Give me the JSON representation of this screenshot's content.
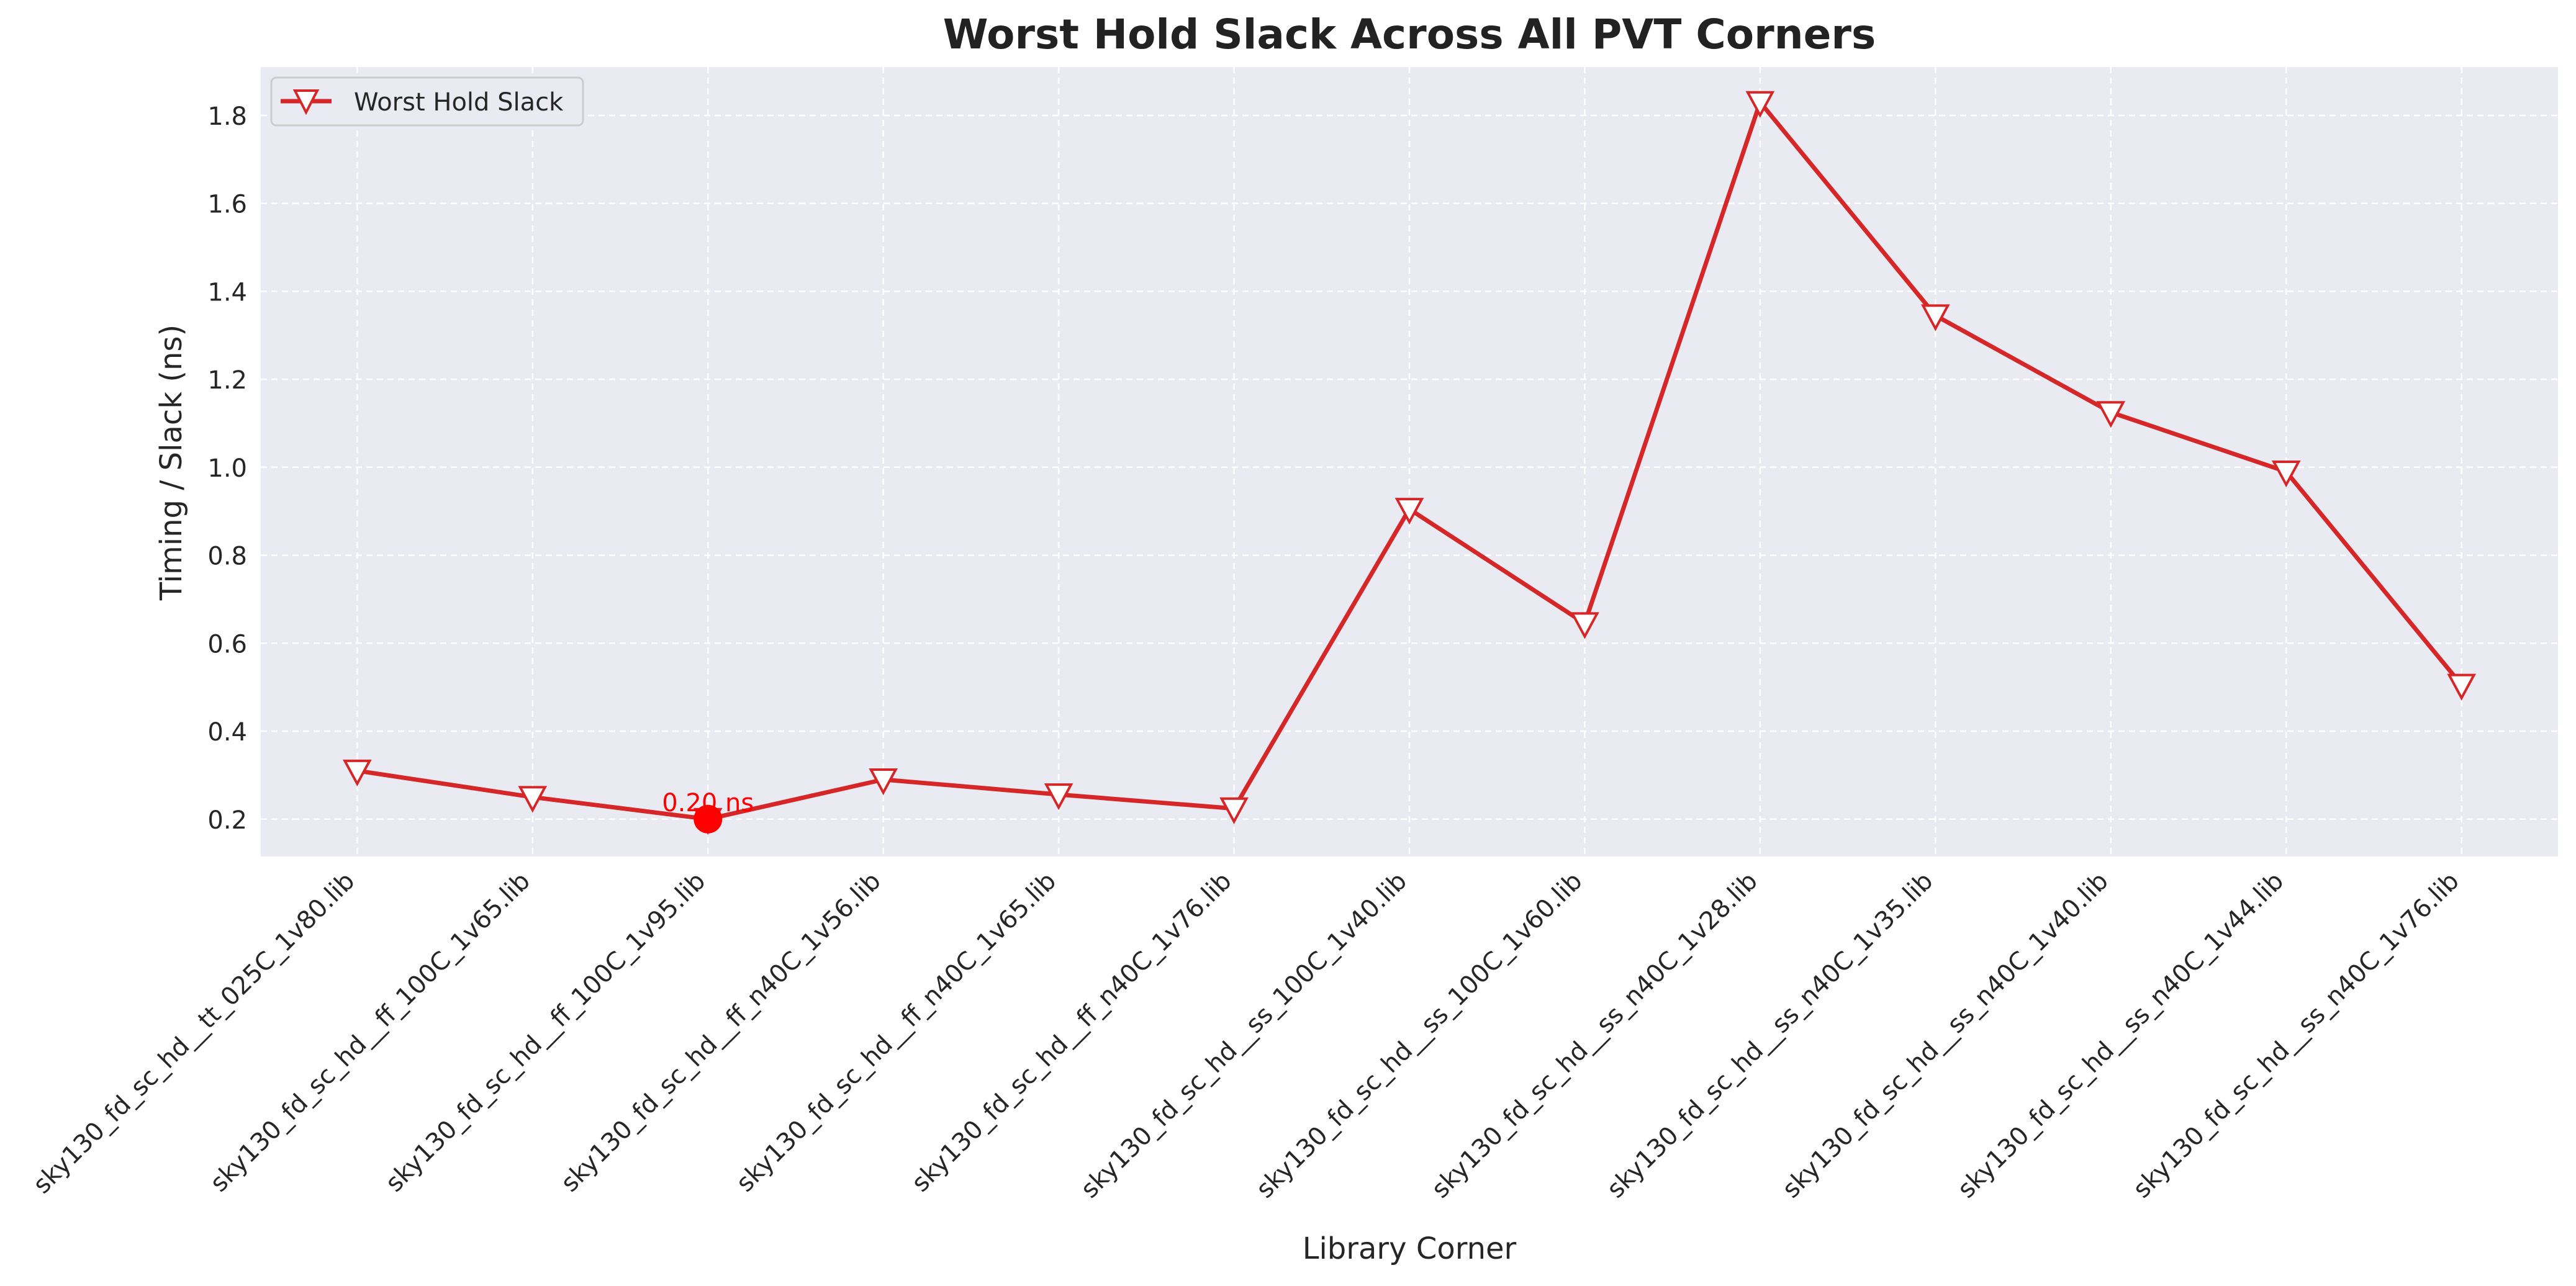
{
  "chart_data": {
    "type": "line",
    "title": "Worst Hold Slack Across All PVT Corners",
    "xlabel": "Library Corner",
    "ylabel": "Timing / Slack (ns)",
    "ylim": [
      0.115,
      1.91
    ],
    "yticks": [
      "0.2",
      "0.4",
      "0.6",
      "0.8",
      "1.0",
      "1.2",
      "1.4",
      "1.6",
      "1.8"
    ],
    "grid": true,
    "legend_position": "top-left",
    "categories": [
      "sky130_fd_sc_hd__tt_025C_1v80.lib",
      "sky130_fd_sc_hd__ff_100C_1v65.lib",
      "sky130_fd_sc_hd__ff_100C_1v95.lib",
      "sky130_fd_sc_hd__ff_n40C_1v56.lib",
      "sky130_fd_sc_hd__ff_n40C_1v65.lib",
      "sky130_fd_sc_hd__ff_n40C_1v76.lib",
      "sky130_fd_sc_hd__ss_100C_1v40.lib",
      "sky130_fd_sc_hd__ss_100C_1v60.lib",
      "sky130_fd_sc_hd__ss_n40C_1v28.lib",
      "sky130_fd_sc_hd__ss_n40C_1v35.lib",
      "sky130_fd_sc_hd__ss_n40C_1v40.lib",
      "sky130_fd_sc_hd__ss_n40C_1v44.lib",
      "sky130_fd_sc_hd__ss_n40C_1v76.lib"
    ],
    "series": [
      {
        "name": "Worst Hold Slack",
        "color": "#d62728",
        "marker": "triangle-down",
        "values": [
          0.31,
          0.25,
          0.2,
          0.29,
          0.256,
          0.224,
          0.905,
          0.645,
          1.83,
          1.345,
          1.125,
          0.99,
          0.505
        ]
      }
    ],
    "annotations": [
      {
        "category_index": 2,
        "value": 0.2,
        "text": "0.20 ns",
        "color": "#ff0000",
        "marker": "circle"
      }
    ],
    "colors": {
      "plot_background": "#eaeaf2",
      "grid": "#ffffff",
      "text": "#262626",
      "title": "#222222"
    }
  }
}
